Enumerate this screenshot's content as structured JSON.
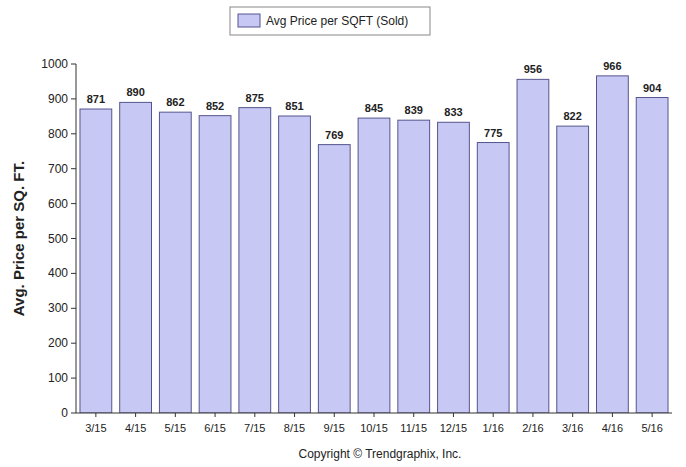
{
  "chart_data": {
    "type": "bar",
    "ylabel": "Avg. Price per SQ. FT.",
    "annotations": [
      "Copyright © Trendgraphix, Inc."
    ],
    "categories": [
      "3/15",
      "4/15",
      "5/15",
      "6/15",
      "7/15",
      "8/15",
      "9/15",
      "10/15",
      "11/15",
      "12/15",
      "1/16",
      "2/16",
      "3/16",
      "4/16",
      "5/16"
    ],
    "series": [
      {
        "name": "Avg Price per SQFT (Sold)",
        "color": "#c8c8f4",
        "values": [
          871,
          890,
          862,
          852,
          875,
          851,
          769,
          845,
          839,
          833,
          775,
          956,
          822,
          966,
          904
        ]
      }
    ],
    "ylim": [
      0,
      1000
    ],
    "yticks": [
      0,
      100,
      200,
      300,
      400,
      500,
      600,
      700,
      800,
      900,
      1000
    ],
    "grid": false,
    "legend": "top",
    "data_labels": true
  }
}
